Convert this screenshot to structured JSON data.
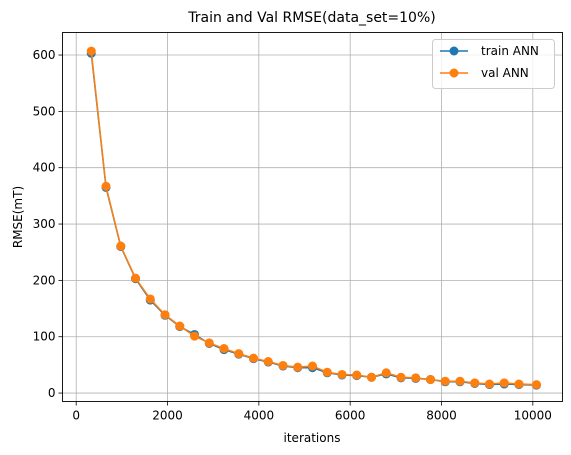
{
  "chart_data": {
    "type": "line",
    "title": "Train and Val RMSE(data_set=10%)",
    "xlabel": "iterations",
    "ylabel": "RMSE(mT)",
    "xlim": [
      -300,
      10650
    ],
    "ylim": [
      -15,
      640
    ],
    "xticks": [
      0,
      2000,
      4000,
      6000,
      8000,
      10000
    ],
    "yticks": [
      0,
      100,
      200,
      300,
      400,
      500,
      600
    ],
    "grid": true,
    "legend_position": "top-right",
    "x": [
      330,
      653,
      976,
      1299,
      1622,
      1945,
      2268,
      2591,
      2914,
      3237,
      3560,
      3883,
      4206,
      4529,
      4852,
      5175,
      5498,
      5821,
      6144,
      6467,
      6790,
      7113,
      7436,
      7759,
      8082,
      8405,
      8728,
      9051,
      9374,
      9697,
      10080
    ],
    "series": [
      {
        "name": "train ANN",
        "color": "#1f77b4",
        "values": [
          603,
          365,
          260,
          203,
          165,
          138,
          118,
          104,
          88,
          77,
          69,
          61,
          55,
          48,
          45,
          45,
          36,
          32,
          31,
          28,
          34,
          27,
          26,
          24,
          20,
          20,
          17,
          15,
          16,
          15,
          14
        ]
      },
      {
        "name": "val ANN",
        "color": "#ff7f0e",
        "values": [
          607,
          367,
          261,
          204,
          167,
          139,
          119,
          101,
          89,
          79,
          70,
          62,
          56,
          49,
          46,
          48,
          37,
          33,
          32,
          28,
          36,
          28,
          27,
          24,
          21,
          21,
          18,
          16,
          18,
          16,
          15
        ]
      }
    ]
  }
}
